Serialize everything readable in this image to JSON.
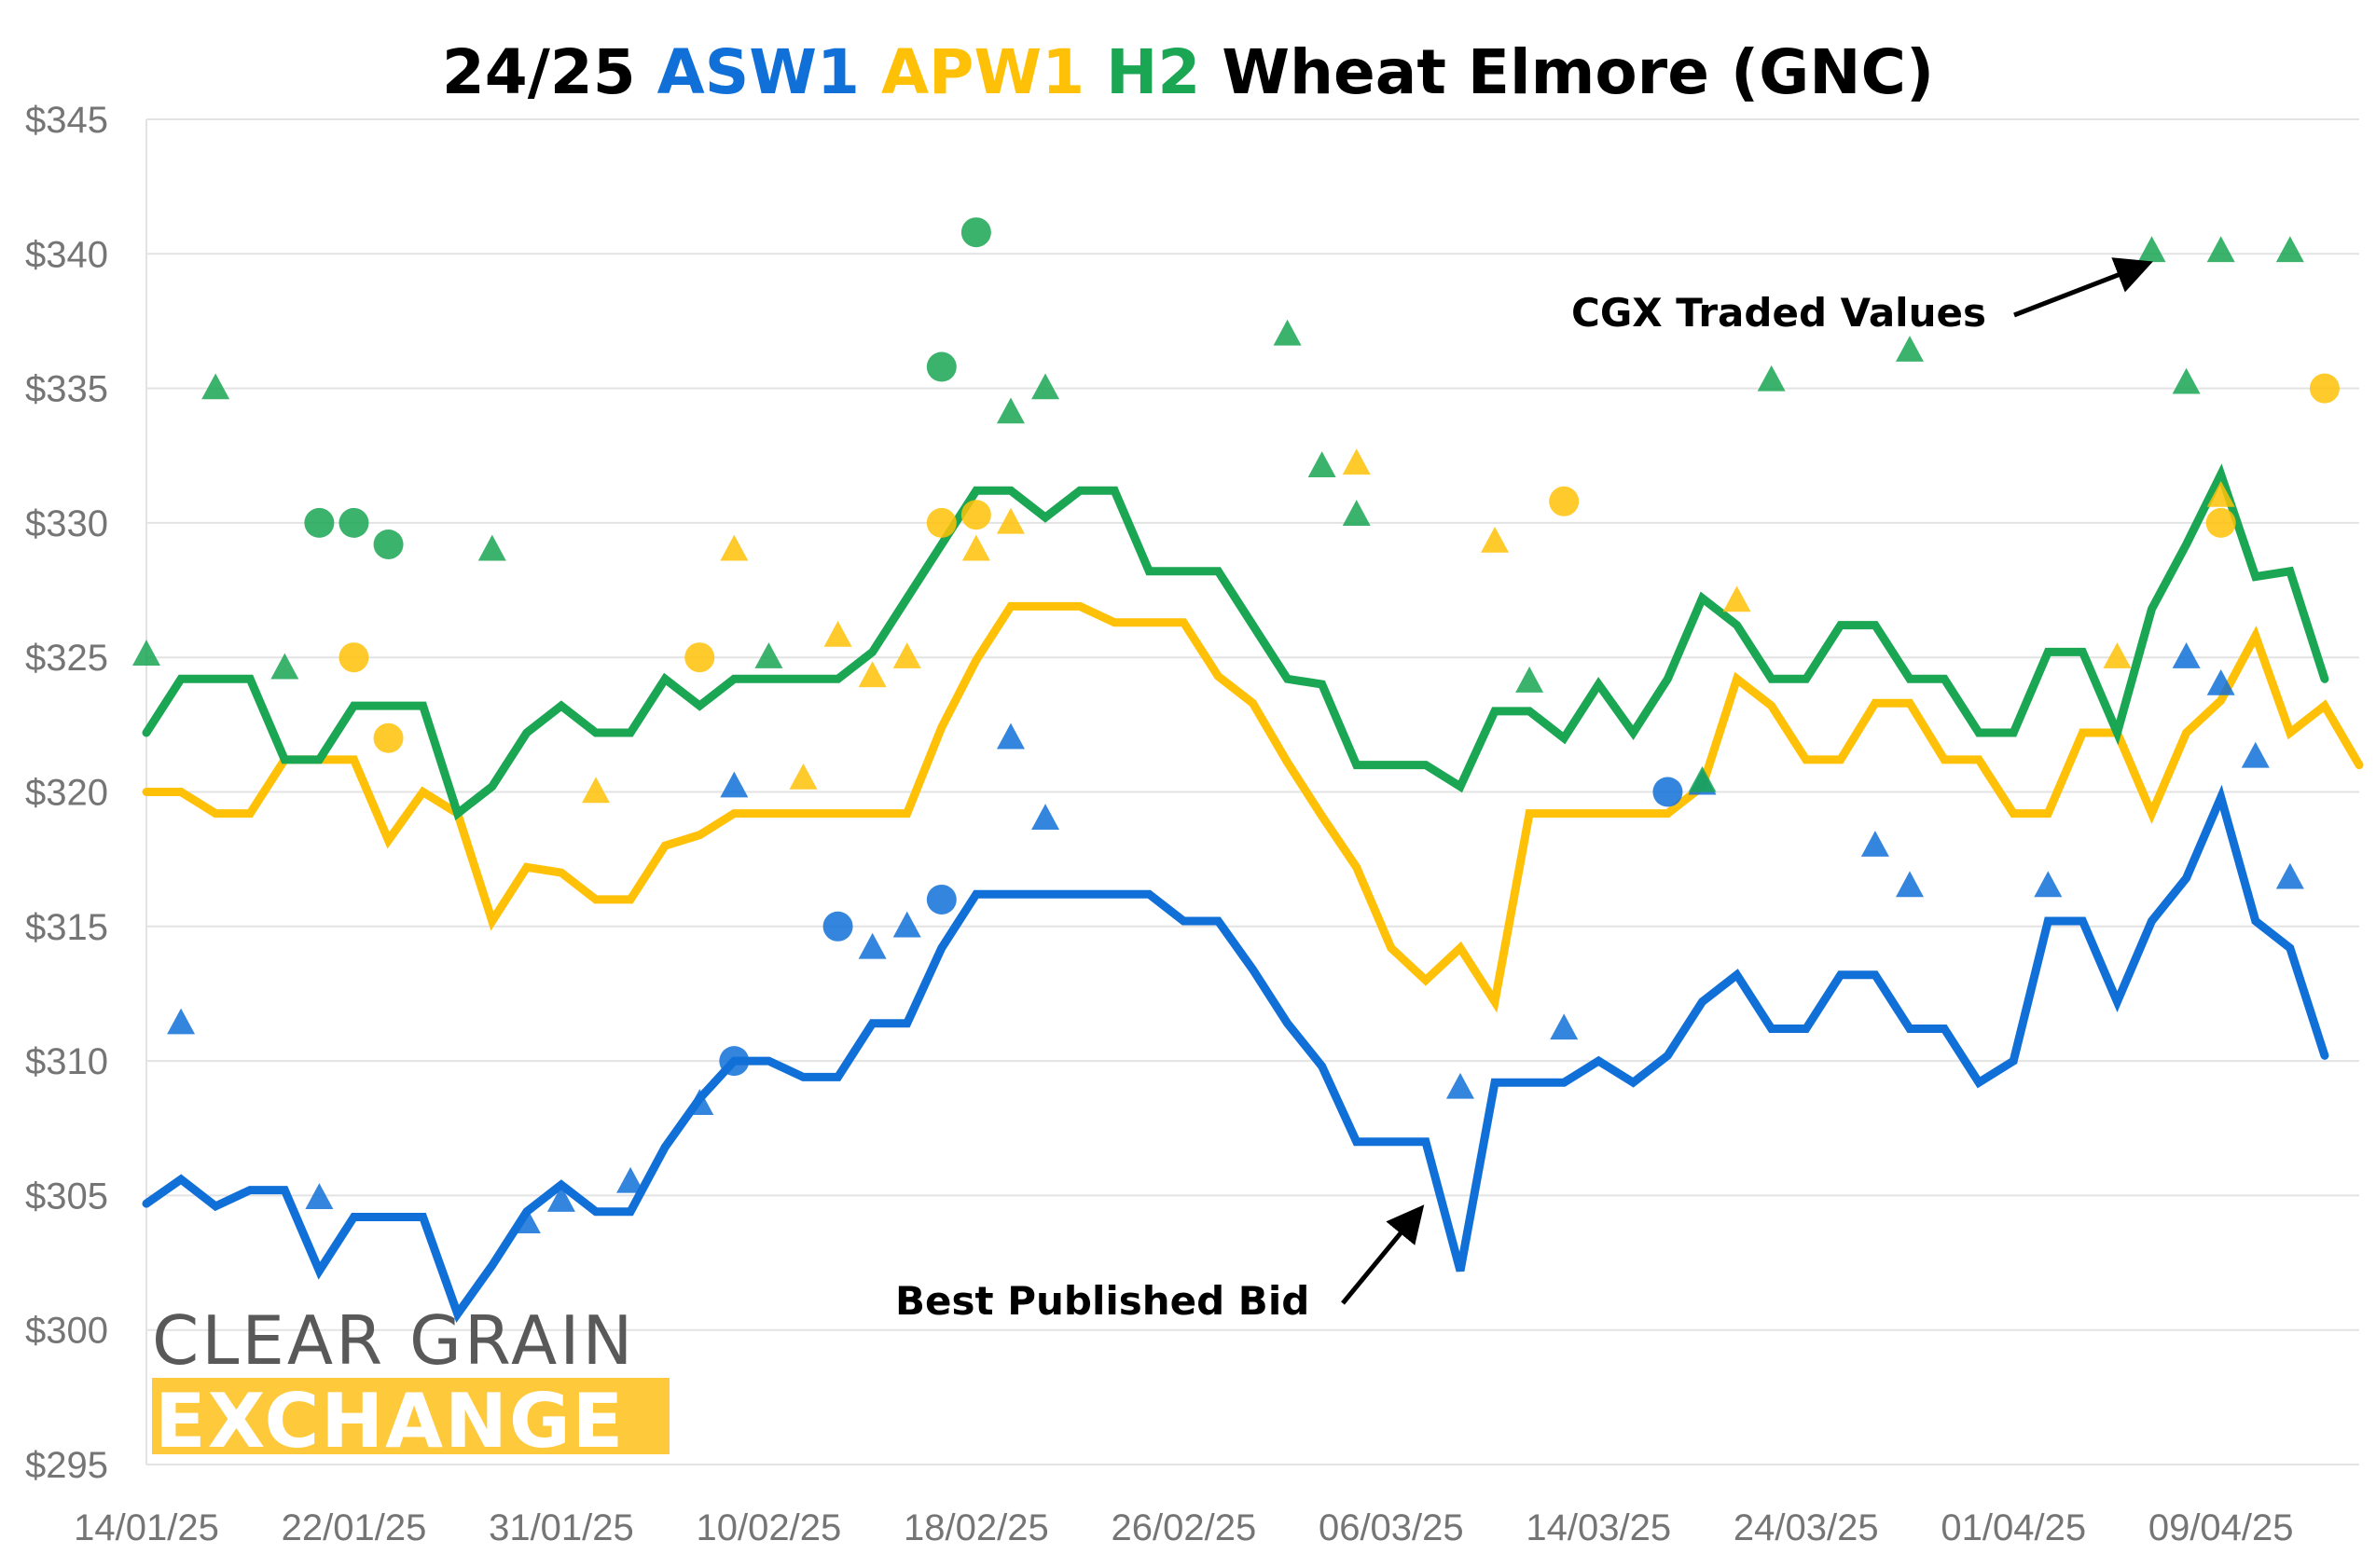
{
  "chart_data": {
    "type": "line",
    "title_parts": [
      {
        "text": "24/25",
        "color": "#000000"
      },
      {
        "text": "ASW1",
        "color": "#1170d8"
      },
      {
        "text": "APW1",
        "color": "#ffc107"
      },
      {
        "text": "H2",
        "color": "#1aa653"
      },
      {
        "text": "Wheat Elmore (GNC)",
        "color": "#000000"
      }
    ],
    "y_ticks": [
      "$295",
      "$300",
      "$305",
      "$310",
      "$315",
      "$320",
      "$325",
      "$330",
      "$335",
      "$340",
      "$345"
    ],
    "ylim": [
      295,
      345
    ],
    "x_ticks": [
      {
        "label": "14/01/25",
        "x": 0
      },
      {
        "label": "22/01/25",
        "x": 6
      },
      {
        "label": "31/01/25",
        "x": 12
      },
      {
        "label": "10/02/25",
        "x": 18
      },
      {
        "label": "18/02/25",
        "x": 24
      },
      {
        "label": "26/02/25",
        "x": 30
      },
      {
        "label": "06/03/25",
        "x": 36
      },
      {
        "label": "14/03/25",
        "x": 42
      },
      {
        "label": "24/03/25",
        "x": 48
      },
      {
        "label": "01/04/25",
        "x": 54
      },
      {
        "label": "09/04/25",
        "x": 60
      }
    ],
    "xlim": [
      0,
      64
    ],
    "grid": true,
    "series": [
      {
        "key": "asw1",
        "color": "#1170d8",
        "values": [
          304.7,
          305.6,
          304.6,
          305.2,
          305.2,
          302.2,
          304.2,
          304.2,
          304.2,
          300.6,
          302.4,
          304.4,
          305.4,
          304.4,
          304.4,
          306.8,
          308.6,
          310.0,
          310.0,
          309.4,
          309.4,
          311.4,
          311.4,
          314.2,
          316.2,
          316.2,
          316.2,
          316.2,
          316.2,
          316.2,
          315.2,
          315.2,
          313.4,
          311.4,
          309.8,
          307.0,
          307.0,
          307.0,
          302.2,
          309.2,
          309.2,
          309.2,
          310.0,
          309.2,
          310.2,
          312.2,
          313.2,
          311.2,
          311.2,
          313.2,
          313.2,
          311.2,
          311.2,
          309.2,
          310.0,
          315.2,
          315.2,
          312.2,
          315.2,
          316.8,
          319.8,
          315.2,
          314.2,
          310.2
        ]
      },
      {
        "key": "apw1",
        "color": "#ffc107",
        "values": [
          320.0,
          320.0,
          319.2,
          319.2,
          321.2,
          321.2,
          321.2,
          318.2,
          320.0,
          319.2,
          315.2,
          317.2,
          317.0,
          316.0,
          316.0,
          318.0,
          318.4,
          319.2,
          319.2,
          319.2,
          319.2,
          319.2,
          319.2,
          322.4,
          324.9,
          326.9,
          326.9,
          326.9,
          326.3,
          326.3,
          326.3,
          324.3,
          323.3,
          321.1,
          319.1,
          317.2,
          314.2,
          313.0,
          314.2,
          312.2,
          319.2,
          319.2,
          319.2,
          319.2,
          319.2,
          320.2,
          324.2,
          323.2,
          321.2,
          321.2,
          323.3,
          323.3,
          321.2,
          321.2,
          319.2,
          319.2,
          322.2,
          322.2,
          319.2,
          322.2,
          323.4,
          325.8,
          322.2,
          323.2,
          321.0
        ]
      },
      {
        "key": "h2",
        "color": "#1aa653",
        "values": [
          322.2,
          324.2,
          324.2,
          324.2,
          321.2,
          321.2,
          323.2,
          323.2,
          323.2,
          319.2,
          320.2,
          322.2,
          323.2,
          322.2,
          322.2,
          324.2,
          323.2,
          324.2,
          324.2,
          324.2,
          324.2,
          325.2,
          327.2,
          329.2,
          331.2,
          331.2,
          330.2,
          331.2,
          331.2,
          328.2,
          328.2,
          328.2,
          326.2,
          324.2,
          324.0,
          321.0,
          321.0,
          321.0,
          320.2,
          323.0,
          323.0,
          322.0,
          324.0,
          322.2,
          324.2,
          327.2,
          326.2,
          324.2,
          324.2,
          326.2,
          326.2,
          324.2,
          324.2,
          322.2,
          322.2,
          325.2,
          325.2,
          322.2,
          326.8,
          329.2,
          331.8,
          328.0,
          328.2,
          324.2
        ]
      }
    ],
    "scatter": [
      {
        "color": "#1170d8",
        "shape": "triangle",
        "points": [
          [
            1,
            311.4
          ],
          [
            5,
            304.9
          ],
          [
            11,
            304.0
          ],
          [
            12,
            304.8
          ],
          [
            14,
            305.5
          ],
          [
            16,
            308.4
          ],
          [
            17,
            320.2
          ],
          [
            21,
            314.2
          ],
          [
            22,
            315.0
          ],
          [
            25,
            322.0
          ],
          [
            26,
            319.0
          ],
          [
            38,
            309.0
          ],
          [
            41,
            311.2
          ],
          [
            45,
            320.3
          ],
          [
            50,
            318.0
          ],
          [
            51,
            316.5
          ],
          [
            55,
            316.5
          ],
          [
            59,
            325.0
          ],
          [
            60,
            324.0
          ],
          [
            61,
            321.3
          ],
          [
            62,
            316.8
          ]
        ]
      },
      {
        "color": "#1170d8",
        "shape": "circle",
        "points": [
          [
            17,
            310.0
          ],
          [
            20,
            315.0
          ],
          [
            23,
            316.0
          ],
          [
            44,
            320.0
          ]
        ]
      },
      {
        "color": "#ffc107",
        "shape": "triangle",
        "points": [
          [
            17,
            329.0
          ],
          [
            19,
            320.5
          ],
          [
            20,
            325.8
          ],
          [
            21,
            324.3
          ],
          [
            22,
            325.0
          ],
          [
            24,
            329.0
          ],
          [
            25,
            330.0
          ],
          [
            35,
            332.2
          ],
          [
            39,
            329.3
          ],
          [
            46,
            327.1
          ],
          [
            57,
            325.0
          ],
          [
            60,
            331.0
          ],
          [
            13,
            320.0
          ]
        ]
      },
      {
        "color": "#ffc107",
        "shape": "circle",
        "points": [
          [
            6,
            325.0
          ],
          [
            7,
            322.0
          ],
          [
            16,
            325.0
          ],
          [
            23,
            330.0
          ],
          [
            24,
            330.3
          ],
          [
            41,
            330.8
          ],
          [
            60,
            330.0
          ],
          [
            63,
            335.0
          ]
        ]
      },
      {
        "color": "#1aa653",
        "shape": "triangle",
        "points": [
          [
            0,
            325.1
          ],
          [
            2,
            335.0
          ],
          [
            4,
            324.6
          ],
          [
            10,
            329.0
          ],
          [
            18,
            325.0
          ],
          [
            25,
            334.1
          ],
          [
            26,
            335.0
          ],
          [
            33,
            337.0
          ],
          [
            34,
            332.1
          ],
          [
            35,
            330.3
          ],
          [
            40,
            324.1
          ],
          [
            45,
            320.4
          ],
          [
            47,
            335.3
          ],
          [
            51,
            336.4
          ],
          [
            58,
            340.1
          ],
          [
            59,
            335.2
          ],
          [
            60,
            340.1
          ],
          [
            62,
            340.1
          ]
        ]
      },
      {
        "color": "#1aa653",
        "shape": "circle",
        "points": [
          [
            5,
            330.0
          ],
          [
            6,
            330.0
          ],
          [
            7,
            329.2
          ],
          [
            23,
            335.8
          ],
          [
            24,
            340.8
          ]
        ]
      }
    ],
    "annotations": [
      {
        "key": "cgx",
        "text": "CGX Traded Values",
        "pointer_x": 58,
        "pointer_y": 339.8
      },
      {
        "key": "bid",
        "text": "Best Published Bid",
        "pointer_x": 37,
        "pointer_y": 304.6
      }
    ]
  },
  "logo": {
    "line1": "CLEAR GRAIN",
    "line2": "EXCHANGE",
    "band_color": "#ffc93c"
  }
}
